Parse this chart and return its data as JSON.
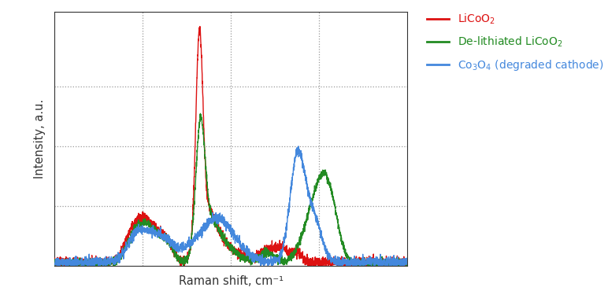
{
  "xlabel": "Raman shift, cm⁻¹",
  "ylabel": "Intensity, a.u.",
  "legend": [
    {
      "label": "LiCoO$_2$",
      "color": "#dd1111"
    },
    {
      "label": "De-lithiated LiCoO$_2$",
      "color": "#228B22"
    },
    {
      "label": "Co$_3$O$_4$ (degraded cathode)",
      "color": "#4488dd"
    }
  ],
  "grid_color": "#999999",
  "line_width": 1.0,
  "bg_color": "#ffffff",
  "colors": {
    "red": "#dd1111",
    "green": "#228B22",
    "blue": "#4488dd"
  },
  "figsize": [
    7.72,
    3.84
  ],
  "dpi": 100
}
